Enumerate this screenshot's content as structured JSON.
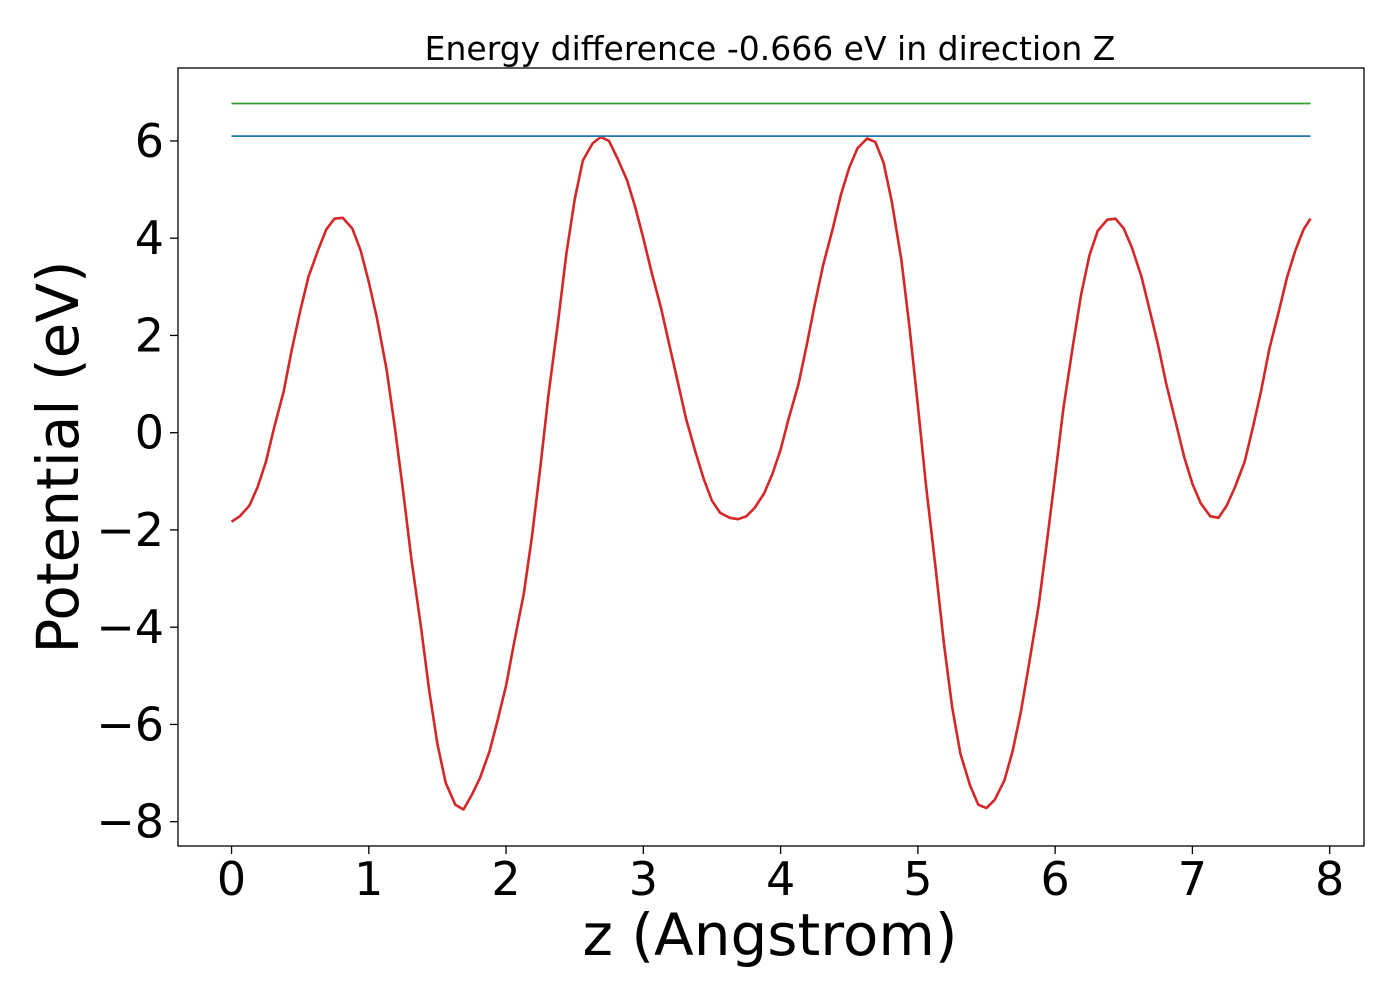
{
  "chart_data": {
    "type": "line",
    "title": "Energy difference -0.666 eV in direction Z",
    "xlabel": "z (Angstrom)",
    "ylabel": "Potential (eV)",
    "xlim": [
      -0.39,
      8.25
    ],
    "ylim": [
      -8.5,
      7.5
    ],
    "xticks": [
      0,
      1,
      2,
      3,
      4,
      5,
      6,
      7,
      8
    ],
    "yticks": [
      -8,
      -6,
      -4,
      -2,
      0,
      2,
      4,
      6
    ],
    "xtick_labels": [
      "0",
      "1",
      "2",
      "3",
      "4",
      "5",
      "6",
      "7",
      "8"
    ],
    "ytick_labels": [
      "−8",
      "−6",
      "−4",
      "−2",
      "0",
      "2",
      "4",
      "6"
    ],
    "grid": false,
    "series": [
      {
        "color": "#d62728",
        "x": [
          0.0,
          0.06,
          0.13,
          0.19,
          0.25,
          0.31,
          0.38,
          0.44,
          0.5,
          0.56,
          0.63,
          0.69,
          0.75,
          0.81,
          0.88,
          0.94,
          1.0,
          1.06,
          1.13,
          1.19,
          1.25,
          1.31,
          1.38,
          1.44,
          1.5,
          1.56,
          1.63,
          1.69,
          1.75,
          1.81,
          1.88,
          1.94,
          2.0,
          2.06,
          2.13,
          2.19,
          2.25,
          2.31,
          2.38,
          2.44,
          2.5,
          2.56,
          2.63,
          2.69,
          2.75,
          2.81,
          2.88,
          2.94,
          3.0,
          3.06,
          3.13,
          3.19,
          3.25,
          3.31,
          3.38,
          3.44,
          3.5,
          3.56,
          3.63,
          3.69,
          3.75,
          3.81,
          3.88,
          3.94,
          4.0,
          4.06,
          4.13,
          4.19,
          4.25,
          4.31,
          4.38,
          4.44,
          4.5,
          4.56,
          4.63,
          4.69,
          4.75,
          4.81,
          4.88,
          4.94,
          5.0,
          5.06,
          5.13,
          5.19,
          5.25,
          5.31,
          5.38,
          5.44,
          5.5,
          5.56,
          5.63,
          5.69,
          5.75,
          5.81,
          5.88,
          5.94,
          6.0,
          6.06,
          6.13,
          6.19,
          6.25,
          6.31,
          6.38,
          6.44,
          6.5,
          6.56,
          6.63,
          6.69,
          6.75,
          6.81,
          6.88,
          6.94,
          7.0,
          7.06,
          7.13,
          7.19,
          7.25,
          7.31,
          7.38,
          7.44,
          7.5,
          7.56,
          7.63,
          7.69,
          7.75,
          7.81,
          7.86
        ],
        "y": [
          -1.83,
          -1.72,
          -1.5,
          -1.12,
          -0.6,
          0.1,
          0.85,
          1.72,
          2.5,
          3.2,
          3.75,
          4.18,
          4.4,
          4.42,
          4.2,
          3.75,
          3.1,
          2.35,
          1.3,
          0.1,
          -1.2,
          -2.6,
          -4.0,
          -5.3,
          -6.4,
          -7.2,
          -7.65,
          -7.75,
          -7.45,
          -7.1,
          -6.55,
          -5.9,
          -5.2,
          -4.3,
          -3.3,
          -2.1,
          -0.7,
          0.8,
          2.3,
          3.7,
          4.8,
          5.6,
          5.95,
          6.08,
          6.0,
          5.65,
          5.2,
          4.65,
          4.0,
          3.3,
          2.55,
          1.8,
          1.05,
          0.3,
          -0.4,
          -0.95,
          -1.4,
          -1.65,
          -1.75,
          -1.78,
          -1.72,
          -1.55,
          -1.25,
          -0.85,
          -0.35,
          0.3,
          1.0,
          1.8,
          2.65,
          3.45,
          4.2,
          4.9,
          5.45,
          5.85,
          6.05,
          5.98,
          5.55,
          4.75,
          3.55,
          2.15,
          0.55,
          -1.1,
          -2.8,
          -4.35,
          -5.65,
          -6.6,
          -7.25,
          -7.65,
          -7.72,
          -7.55,
          -7.15,
          -6.55,
          -5.75,
          -4.75,
          -3.55,
          -2.25,
          -0.9,
          0.5,
          1.8,
          2.85,
          3.65,
          4.15,
          4.38,
          4.4,
          4.2,
          3.8,
          3.2,
          2.5,
          1.8,
          1.0,
          0.2,
          -0.5,
          -1.05,
          -1.45,
          -1.72,
          -1.75,
          -1.5,
          -1.12,
          -0.6,
          0.1,
          0.85,
          1.72,
          2.5,
          3.2,
          3.75,
          4.18,
          4.4
        ]
      },
      {
        "color": "#1f77b4",
        "x": [
          0.0,
          7.86
        ],
        "y": [
          6.1,
          6.1
        ]
      },
      {
        "color": "#2ca02c",
        "x": [
          0.0,
          7.86
        ],
        "y": [
          6.77,
          6.77
        ]
      }
    ]
  }
}
